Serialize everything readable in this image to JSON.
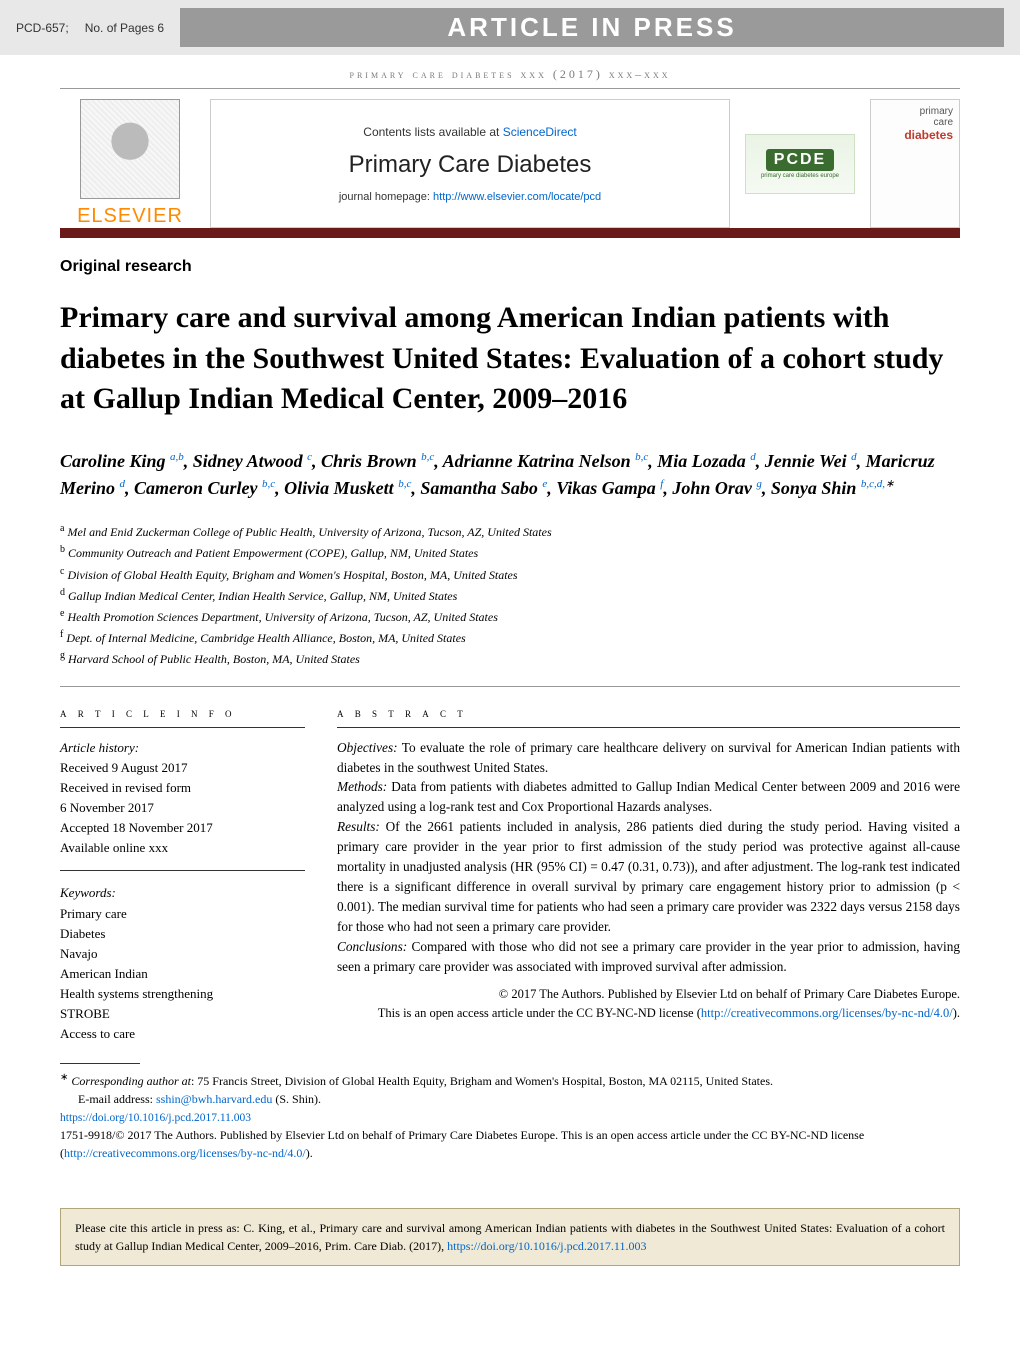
{
  "topbar": {
    "model_ref": "PCD-657;",
    "pages": "No. of Pages 6",
    "banner": "ARTICLE IN PRESS"
  },
  "running_head": "primary care diabetes xxx (2017) xxx–xxx",
  "masthead": {
    "elsevier": "ELSEVIER",
    "contents_prefix": "Contents lists available at ",
    "contents_link": "ScienceDirect",
    "journal_name": "Primary Care Diabetes",
    "homepage_prefix": "journal homepage: ",
    "homepage_url": "http://www.elsevier.com/locate/pcd",
    "pcde_logo": "PCDE",
    "pcde_sub": "primary care diabetes europe",
    "cover_line1": "primary",
    "cover_line2": "care",
    "cover_line3": "diabetes"
  },
  "section_label": "Original research",
  "title": "Primary care and survival among American Indian patients with diabetes in the Southwest United States: Evaluation of a cohort study at Gallup Indian Medical Center, 2009–2016",
  "authors_html": "Caroline King <sup>a,b</sup>, Sidney Atwood <sup>c</sup>, Chris Brown <sup>b,c</sup>, Adrianne Katrina Nelson <sup>b,c</sup>, Mia Lozada <sup>d</sup>, Jennie Wei <sup>d</sup>, Maricruz Merino <sup>d</sup>, Cameron Curley <sup>b,c</sup>, Olivia Muskett <sup>b,c</sup>, Samantha Sabo <sup>e</sup>, Vikas Gampa <sup>f</sup>, John Orav <sup>g</sup>, Sonya Shin <sup>b,c,d,</sup><sup class='star'>∗</sup>",
  "affiliations": [
    "Mel and Enid Zuckerman College of Public Health, University of Arizona, Tucson, AZ, United States",
    "Community Outreach and Patient Empowerment (COPE), Gallup, NM, United States",
    "Division of Global Health Equity, Brigham and Women's Hospital, Boston, MA, United States",
    "Gallup Indian Medical Center, Indian Health Service, Gallup, NM, United States",
    "Health Promotion Sciences Department, University of Arizona, Tucson, AZ, United States",
    "Dept. of Internal Medicine, Cambridge Health Alliance, Boston, MA, United States",
    "Harvard School of Public Health, Boston, MA, United States"
  ],
  "affil_markers": [
    "a",
    "b",
    "c",
    "d",
    "e",
    "f",
    "g"
  ],
  "article_info": {
    "head": "a r t i c l e   i n f o",
    "history_label": "Article history:",
    "received": "Received 9 August 2017",
    "revised1": "Received in revised form",
    "revised2": "6 November 2017",
    "accepted": "Accepted 18 November 2017",
    "online": "Available online xxx",
    "keywords_label": "Keywords:",
    "keywords": [
      "Primary care",
      "Diabetes",
      "Navajo",
      "American Indian",
      "Health systems strengthening",
      "STROBE",
      "Access to care"
    ]
  },
  "abstract": {
    "head": "a b s t r a c t",
    "objectives_label": "Objectives:",
    "objectives": " To evaluate the role of primary care healthcare delivery on survival for American Indian patients with diabetes in the southwest United States.",
    "methods_label": "Methods:",
    "methods": " Data from patients with diabetes admitted to Gallup Indian Medical Center between 2009 and 2016 were analyzed using a log-rank test and Cox Proportional Hazards analyses.",
    "results_label": "Results:",
    "results": " Of the 2661 patients included in analysis, 286 patients died during the study period. Having visited a primary care provider in the year prior to first admission of the study period was protective against all-cause mortality in unadjusted analysis (HR (95% CI) = 0.47 (0.31, 0.73)), and after adjustment. The log-rank test indicated there is a significant difference in overall survival by primary care engagement history prior to admission (p < 0.001). The median survival time for patients who had seen a primary care provider was 2322 days versus 2158 days for those who had not seen a primary care provider.",
    "conclusions_label": "Conclusions:",
    "conclusions": " Compared with those who did not see a primary care provider in the year prior to admission, having seen a primary care provider was associated with improved survival after admission.",
    "copyright": "© 2017 The Authors. Published by Elsevier Ltd on behalf of Primary Care Diabetes Europe.",
    "license_pre": "This is an open access article under the CC BY-NC-ND license (",
    "license_url": "http://creativecommons.org/licenses/by-nc-nd/4.0/",
    "license_post": ")."
  },
  "footnotes": {
    "corr_label": "Corresponding author at",
    "corr_text": ": 75 Francis Street, Division of Global Health Equity, Brigham and Women's Hospital, Boston, MA 02115, United States.",
    "email_label": "E-mail address: ",
    "email": "sshin@bwh.harvard.edu",
    "email_who": " (S. Shin).",
    "doi": "https://doi.org/10.1016/j.pcd.2017.11.003",
    "issn_line": "1751-9918/© 2017 The Authors. Published by Elsevier Ltd on behalf of Primary Care Diabetes Europe. This is an open access article under the CC BY-NC-ND license (",
    "issn_url": "http://creativecommons.org/licenses/by-nc-nd/4.0/",
    "issn_post": ")."
  },
  "cite_box": {
    "pre": "Please cite this article in press as: C. King, et al., Primary care and survival among American Indian patients with diabetes in the Southwest United States: Evaluation of a cohort study at Gallup Indian Medical Center, 2009–2016, Prim. Care Diab. (2017), ",
    "url": "https://doi.org/10.1016/j.pcd.2017.11.003"
  },
  "colors": {
    "maroon": "#6b1a1a",
    "link": "#0066cc",
    "elsevier_orange": "#ff8a00",
    "banner_grey": "#9a9a9a",
    "citebox_bg": "#efe9d6",
    "citebox_border": "#b0a67a"
  }
}
